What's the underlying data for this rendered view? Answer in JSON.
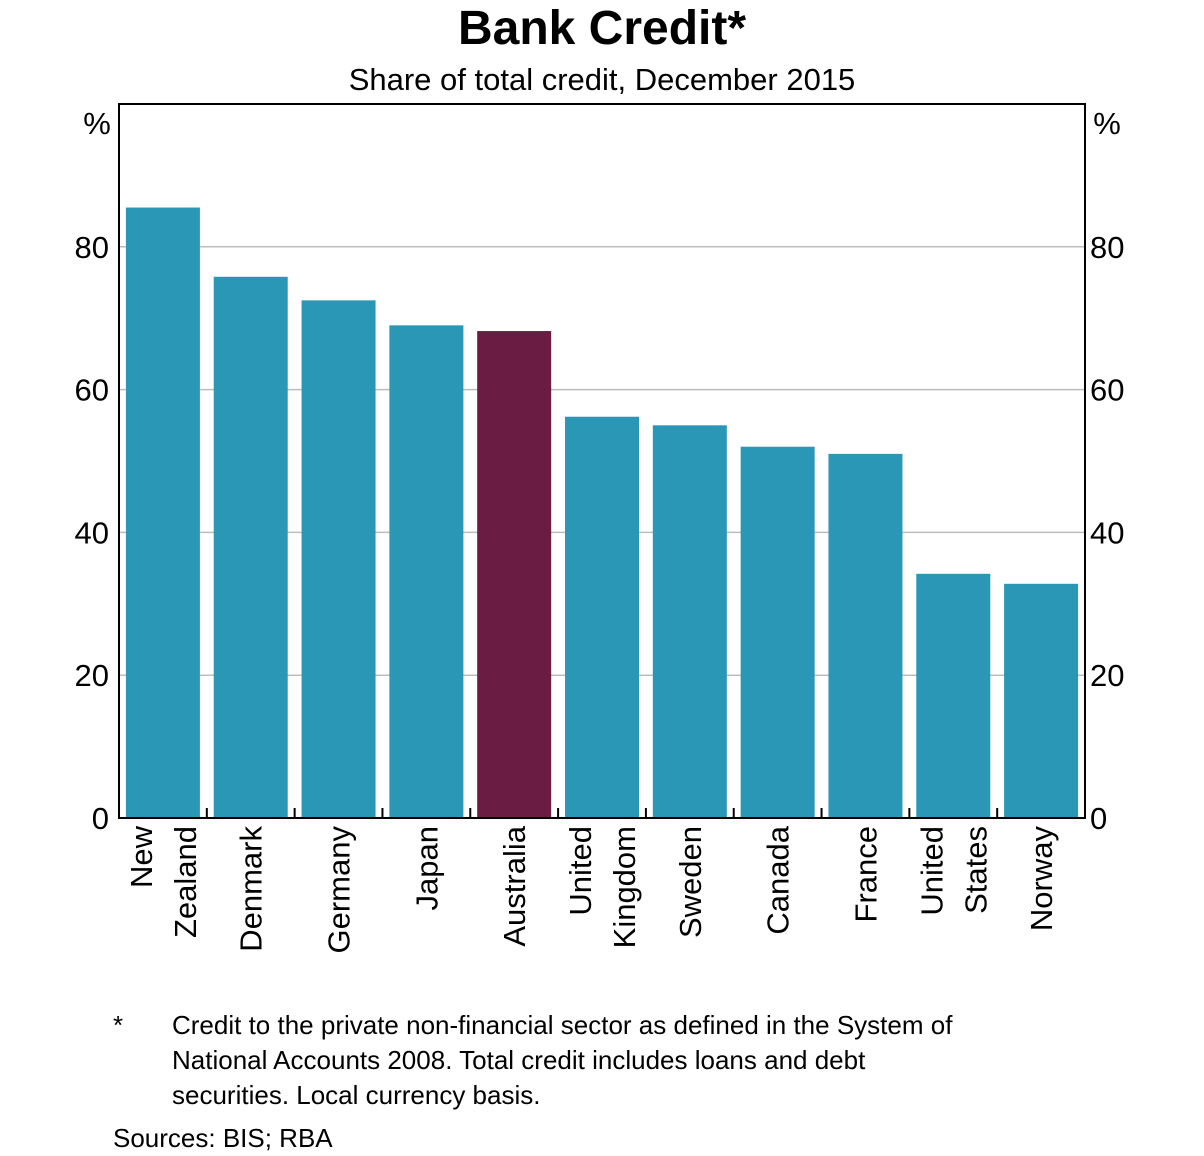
{
  "chart_data": {
    "type": "bar",
    "title": "Bank Credit*",
    "subtitle": "Share of total credit, December 2015",
    "ylabel_left": "%",
    "ylabel_right": "%",
    "ylim": [
      0,
      100
    ],
    "yticks": [
      0,
      20,
      40,
      60,
      80
    ],
    "grid": true,
    "categories": [
      [
        "New",
        "Zealand"
      ],
      [
        "Denmark"
      ],
      [
        "Germany"
      ],
      [
        "Japan"
      ],
      [
        "Australia"
      ],
      [
        "United",
        "Kingdom"
      ],
      [
        "Sweden"
      ],
      [
        "Canada"
      ],
      [
        "France"
      ],
      [
        "United",
        "States"
      ],
      [
        "Norway"
      ]
    ],
    "values": [
      85.5,
      75.8,
      72.5,
      69.0,
      68.2,
      56.2,
      55.0,
      52.0,
      51.0,
      34.2,
      32.8
    ],
    "highlight_index": 4,
    "colors": {
      "bar": "#2A97B7",
      "highlight": "#6B1C42",
      "grid": "#BDBDBD",
      "axis": "#000000"
    }
  },
  "footnote": {
    "marker": "*",
    "lines": [
      "Credit to the private non-financial sector as defined in the System of",
      "National Accounts 2008. Total credit includes loans and debt",
      "securities. Local currency basis."
    ]
  },
  "sources": "Sources:  BIS; RBA"
}
